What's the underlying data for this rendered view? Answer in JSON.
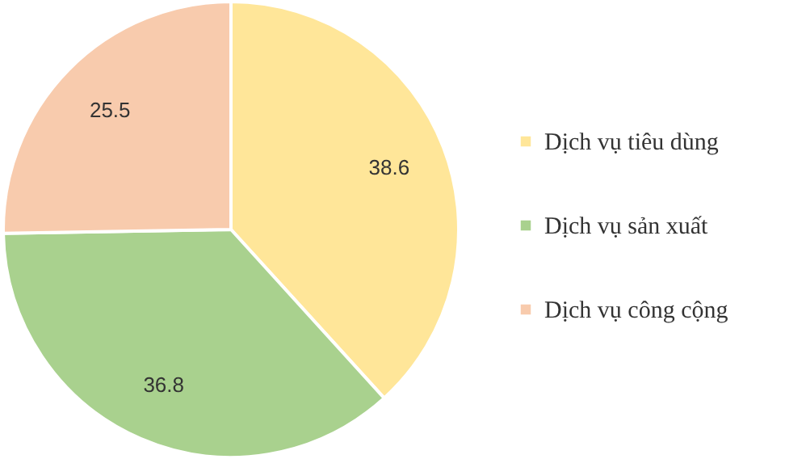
{
  "chart_data": {
    "type": "pie",
    "categories": [
      "Dịch vụ tiêu dùng",
      "Dịch vụ sản xuất",
      "Dịch vụ công cộng"
    ],
    "values": [
      38.6,
      36.8,
      25.5
    ],
    "colors": [
      "#ffe699",
      "#a9d18e",
      "#f8cbad"
    ],
    "data_labels": true,
    "legend": "right"
  }
}
